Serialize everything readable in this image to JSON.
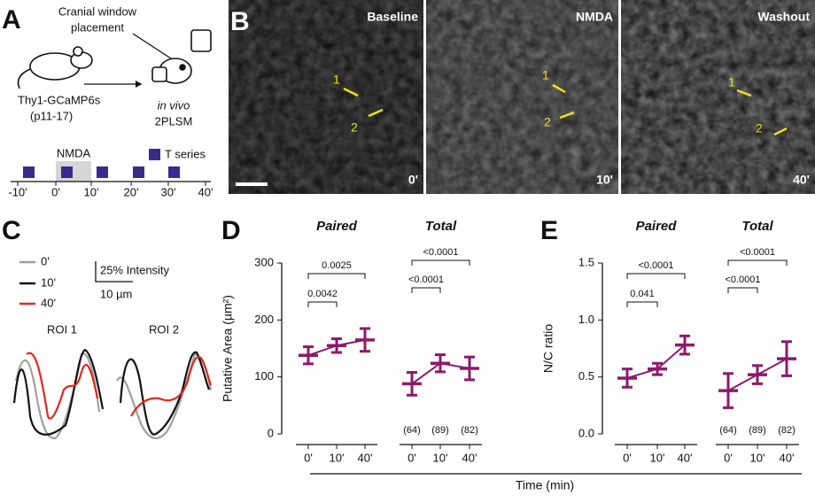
{
  "panel_a": {
    "letter": "A",
    "window_label": [
      "Cranial window",
      "placement"
    ],
    "mouse_label": [
      "Thy1-GCaMP6s",
      "(p11-17)"
    ],
    "imaging_label": [
      "in vivo",
      "2PLSM"
    ],
    "drug_label": "NMDA",
    "legend_label": "T series",
    "timeline_ticks": [
      "-10'",
      "0'",
      "10'",
      "20'",
      "30'",
      "40'"
    ]
  },
  "panel_b": {
    "letter": "B",
    "images": [
      {
        "title": "Baseline",
        "time": "0'"
      },
      {
        "title": "NMDA",
        "time": "10'"
      },
      {
        "title": "Washout",
        "time": "40'"
      }
    ],
    "roi_labels": [
      "1",
      "2"
    ]
  },
  "panel_c": {
    "letter": "C",
    "legend": [
      "0'",
      "10'",
      "40'"
    ],
    "scale_intensity": "25% Intensity",
    "scale_length": "10 µm",
    "roi_titles": [
      "ROI 1",
      "ROI 2"
    ]
  },
  "xlabel": "Time (min)",
  "chart_data": [
    {
      "type": "dot",
      "letter": "D",
      "ylabel": "Putative Area (µm²)",
      "ylim": [
        0,
        300
      ],
      "yticks": [
        0,
        100,
        200,
        300
      ],
      "color": "#8b1a6b",
      "groups": [
        {
          "title": "Paired",
          "categories": [
            "0'",
            "10'",
            "40'"
          ],
          "values": [
            138,
            155,
            165
          ],
          "errors": [
            15,
            12,
            20
          ],
          "p_values": [
            "0.0042",
            "0.0025"
          ]
        },
        {
          "title": "Total",
          "categories": [
            "0'",
            "10'",
            "40'"
          ],
          "values": [
            88,
            124,
            115
          ],
          "errors": [
            20,
            15,
            20
          ],
          "counts": [
            "(64)",
            "(89)",
            "(82)"
          ],
          "p_values": [
            "<0.0001",
            "<0.0001"
          ]
        }
      ]
    },
    {
      "type": "dot",
      "letter": "E",
      "ylabel": "N/C ratio",
      "ylim": [
        0,
        1.5
      ],
      "yticks": [
        {
          "value": 0,
          "label": "0.0"
        },
        {
          "value": 0.5,
          "label": "0.5"
        },
        {
          "value": 1,
          "label": "1.0"
        },
        {
          "value": 1.5,
          "label": "1.5"
        }
      ],
      "color": "#8b1a6b",
      "groups": [
        {
          "title": "Paired",
          "categories": [
            "0'",
            "10'",
            "40'"
          ],
          "values": [
            0.49,
            0.57,
            0.78
          ],
          "errors": [
            0.08,
            0.05,
            0.08
          ],
          "p_values": [
            "0.041",
            "<0.0001"
          ]
        },
        {
          "title": "Total",
          "categories": [
            "0'",
            "10'",
            "40'"
          ],
          "values": [
            0.38,
            0.52,
            0.66
          ],
          "errors": [
            0.15,
            0.08,
            0.15
          ],
          "counts": [
            "(64)",
            "(89)",
            "(82)"
          ],
          "p_values": [
            "<0.0001",
            "<0.0001"
          ]
        }
      ]
    }
  ]
}
